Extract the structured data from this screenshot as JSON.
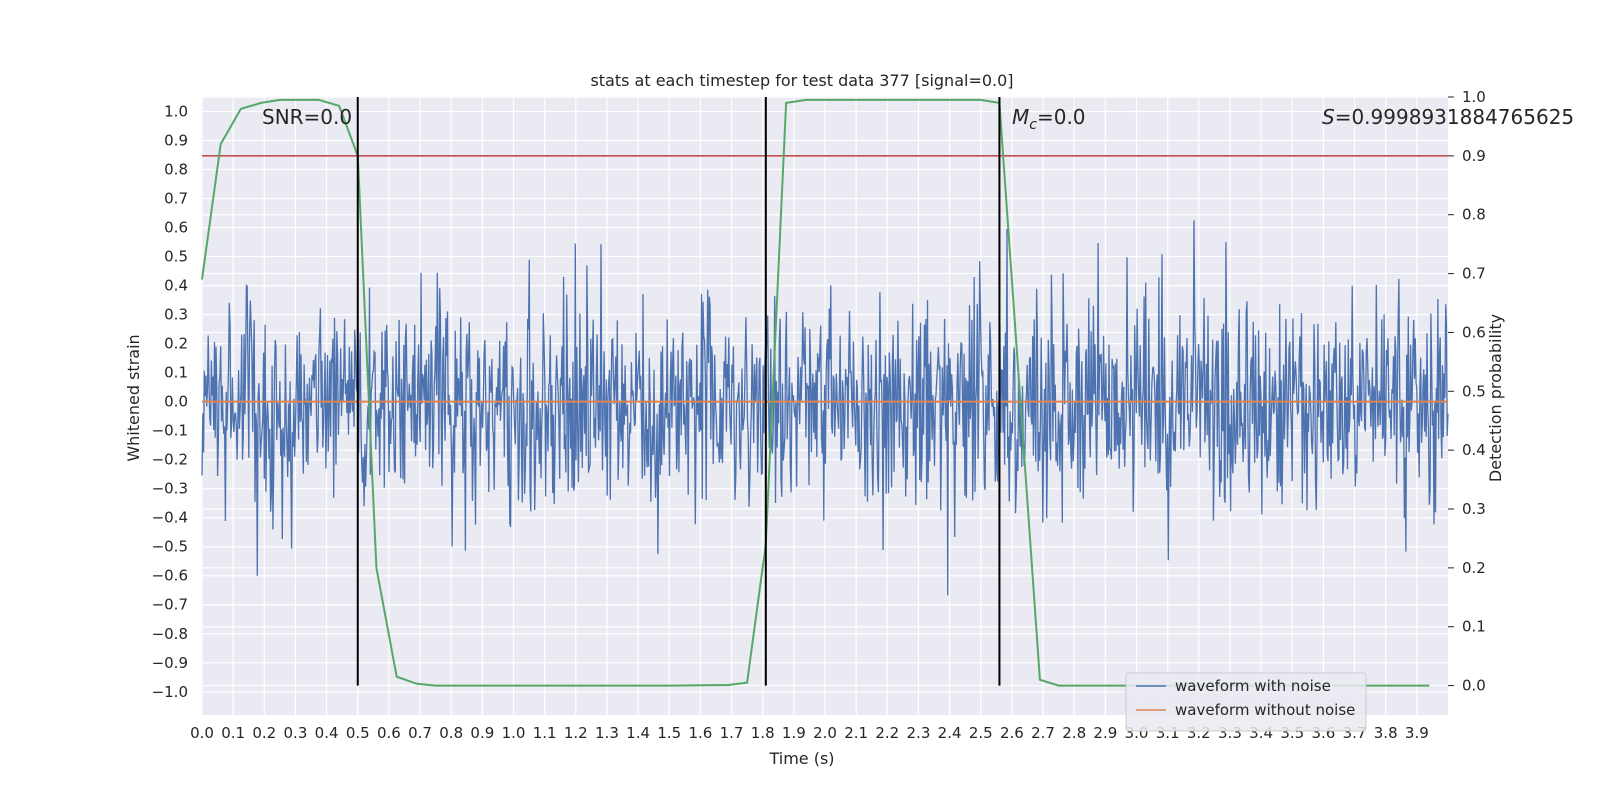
{
  "chart_data": {
    "type": "line",
    "title": "stats at each timestep for test data 377 [signal=0.0]",
    "xlabel": "Time (s)",
    "ylabel": "Whitened strain",
    "y2label": "Detection probability",
    "xlim": [
      0.0,
      4.0
    ],
    "ylim": [
      -1.08,
      1.05
    ],
    "y2lim": [
      -0.05,
      1.0
    ],
    "x_ticks": [
      "0.0",
      "0.1",
      "0.2",
      "0.3",
      "0.4",
      "0.5",
      "0.6",
      "0.7",
      "0.8",
      "0.9",
      "1.0",
      "1.1",
      "1.2",
      "1.3",
      "1.4",
      "1.5",
      "1.6",
      "1.7",
      "1.8",
      "1.9",
      "2.0",
      "2.1",
      "2.2",
      "2.3",
      "2.4",
      "2.5",
      "2.6",
      "2.7",
      "2.8",
      "2.9",
      "3.0",
      "3.1",
      "3.2",
      "3.3",
      "3.4",
      "3.5",
      "3.6",
      "3.7",
      "3.8",
      "3.9"
    ],
    "y_ticks": [
      "1.0",
      "0.9",
      "0.8",
      "0.7",
      "0.6",
      "0.5",
      "0.4",
      "0.3",
      "0.2",
      "0.1",
      "0.0",
      "−0.1",
      "−0.2",
      "−0.3",
      "−0.4",
      "−0.5",
      "−0.6",
      "−0.7",
      "−0.8",
      "−0.9",
      "−1.0"
    ],
    "y2_ticks": [
      "1.0",
      "0.9",
      "0.8",
      "0.7",
      "0.6",
      "0.5",
      "0.4",
      "0.3",
      "0.2",
      "0.1",
      "0.0"
    ],
    "grid": true,
    "legend_position": "bottom-right",
    "series": [
      {
        "name": "waveform with noise",
        "color": "#4c72b0",
        "axis": "left",
        "style": "noise",
        "approx_amplitude": 0.3,
        "x_range": [
          0.0,
          4.0
        ]
      },
      {
        "name": "waveform without noise",
        "color": "#dd8452",
        "axis": "left",
        "x_range": [
          0.0,
          4.0
        ],
        "values_constant": 0.0
      },
      {
        "name": "",
        "color": "#55a868",
        "axis": "right",
        "x": [
          0.0,
          0.06,
          0.125,
          0.19,
          0.25,
          0.31,
          0.375,
          0.44,
          0.5,
          0.56,
          0.625,
          0.69,
          0.75,
          0.81,
          0.875,
          1.0,
          1.25,
          1.5,
          1.69,
          1.75,
          1.81,
          1.875,
          1.94,
          2.0,
          2.25,
          2.5,
          2.56,
          2.625,
          2.69,
          2.75,
          2.81,
          3.0,
          3.5,
          3.94
        ],
        "y": [
          0.69,
          0.92,
          0.98,
          0.99,
          0.995,
          0.995,
          0.995,
          0.985,
          0.9,
          0.2,
          0.015,
          0.003,
          0.0,
          0.0,
          0.0,
          0.0,
          0.0,
          0.0,
          0.001,
          0.005,
          0.24,
          0.99,
          0.995,
          0.995,
          0.995,
          0.995,
          0.99,
          0.5,
          0.01,
          0.0,
          0.0,
          0.0,
          0.0,
          0.0
        ]
      }
    ],
    "threshold_line": {
      "axis": "right",
      "value": 0.9,
      "color": "#c44e52"
    },
    "vertical_lines": [
      {
        "x": 0.5,
        "color": "#000000"
      },
      {
        "x": 1.81,
        "color": "#000000"
      },
      {
        "x": 2.56,
        "color": "#000000"
      }
    ],
    "annotations": {
      "snr": "SNR=0.0",
      "mc_symbol": "M",
      "mc_sub": "c",
      "mc_value": "=0.0",
      "s_symbol": "S",
      "s_value": "=0.9998931884765625"
    }
  }
}
